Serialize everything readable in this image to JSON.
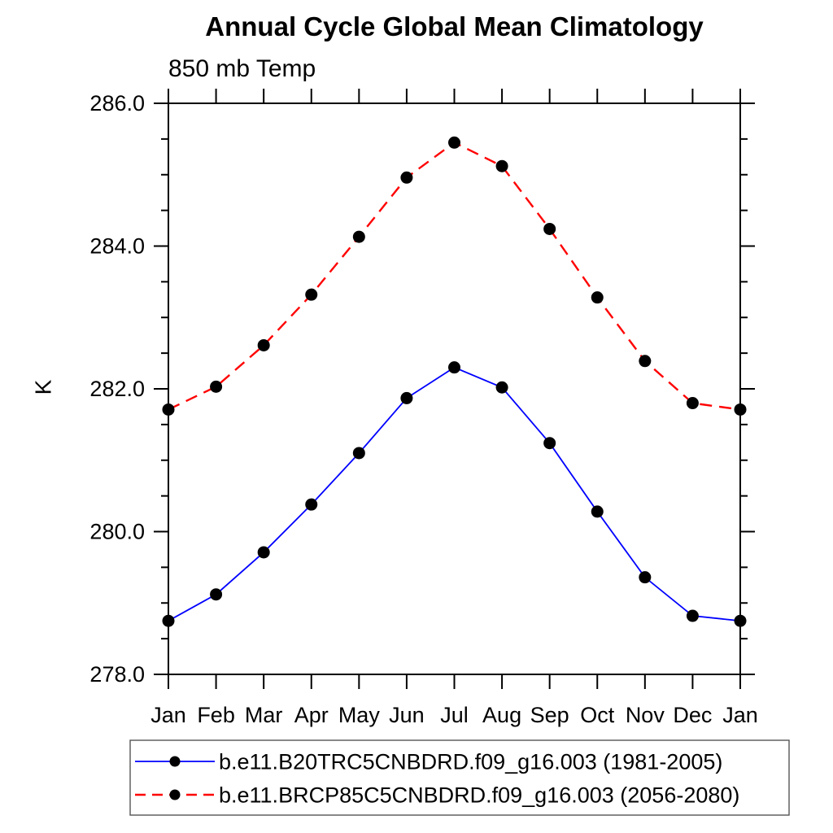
{
  "title": "Annual Cycle Global Mean Climatology",
  "subtitle": "850 mb Temp",
  "ylabel": "K",
  "chart_data": {
    "type": "line",
    "categories": [
      "Jan",
      "Feb",
      "Mar",
      "Apr",
      "May",
      "Jun",
      "Jul",
      "Aug",
      "Sep",
      "Oct",
      "Nov",
      "Dec",
      "Jan"
    ],
    "series": [
      {
        "id": "b20tr",
        "name": "b.e11.B20TRC5CNBDRD.f09_g16.003 (1981-2005)",
        "color": "#0000ff",
        "line_style": "solid",
        "marker": "filled-circle",
        "marker_color": "#000000",
        "values": [
          278.75,
          279.12,
          279.71,
          280.38,
          281.1,
          281.87,
          282.3,
          282.02,
          281.24,
          280.28,
          279.36,
          278.82,
          278.75
        ]
      },
      {
        "id": "brcp85",
        "name": "b.e11.BRCP85C5CNBDRD.f09_g16.003 (2056-2080)",
        "color": "#ff0000",
        "line_style": "dashed",
        "marker": "filled-circle",
        "marker_color": "#000000",
        "values": [
          281.71,
          282.03,
          282.61,
          283.32,
          284.13,
          284.96,
          285.45,
          285.12,
          284.24,
          283.28,
          282.39,
          281.8,
          281.71
        ]
      }
    ],
    "ylim": [
      278.0,
      286.0
    ],
    "ytick_major": [
      278.0,
      280.0,
      282.0,
      284.0,
      286.0
    ],
    "ytick_labels": [
      "278.0",
      "280.0",
      "282.0",
      "284.0",
      "286.0"
    ],
    "ytick_minor_step": 0.5,
    "grid": false,
    "legend_position": "bottom-left"
  },
  "legend": {
    "entries": [
      "b.e11.B20TRC5CNBDRD.f09_g16.003 (1981-2005)",
      "b.e11.BRCP85C5CNBDRD.f09_g16.003 (2056-2080)"
    ]
  }
}
